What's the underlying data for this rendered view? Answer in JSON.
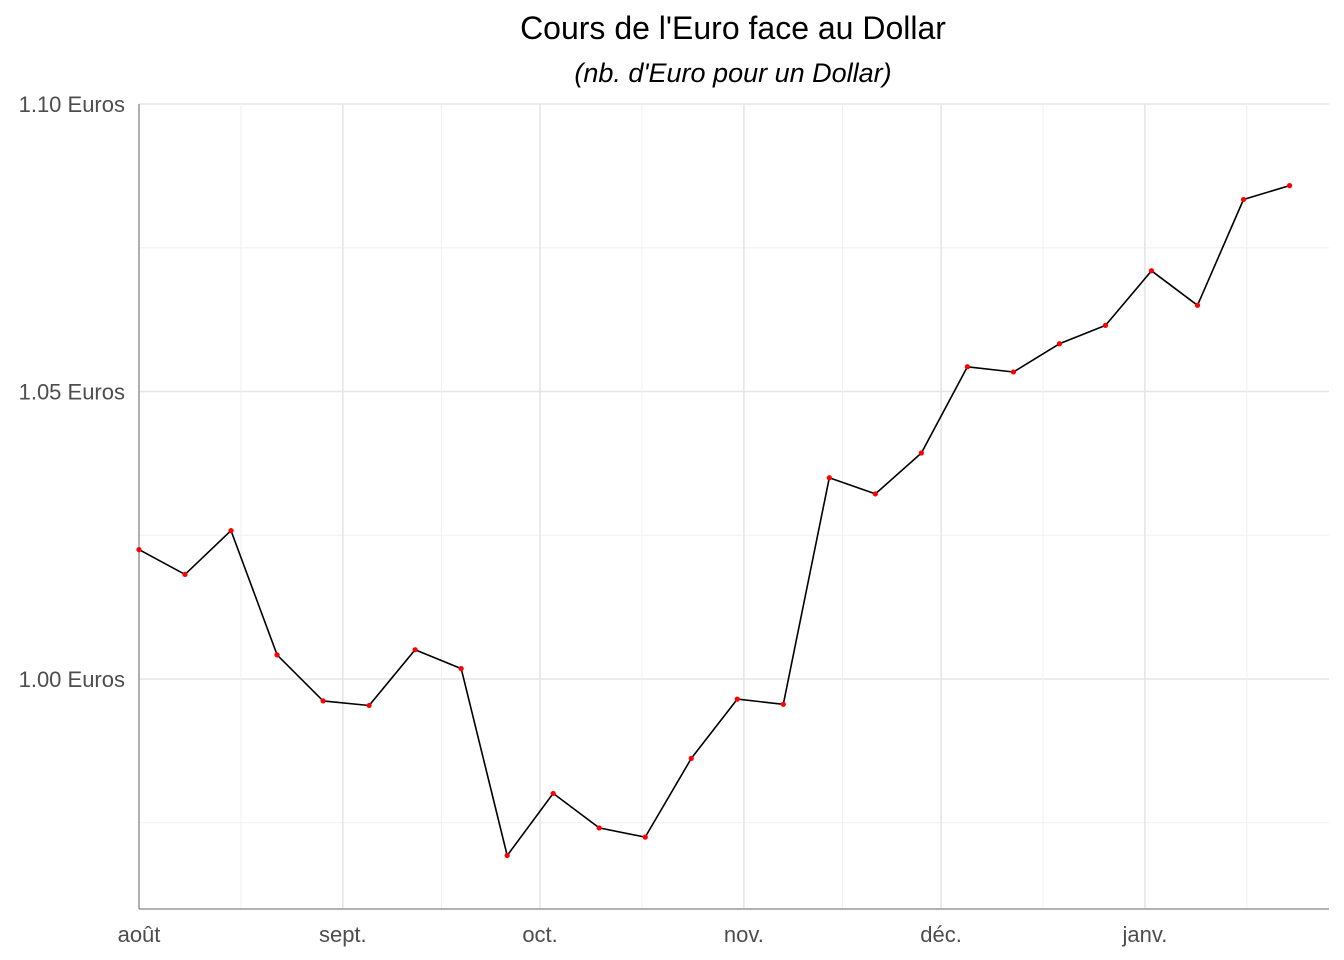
{
  "chart_data": {
    "type": "line",
    "title": "Cours de l'Euro face au Dollar",
    "subtitle": "(nb. d'Euro pour un Dollar)",
    "xlabel": "",
    "ylabel": "",
    "x_ticks": [
      {
        "label": "août",
        "date": "2022-08-01"
      },
      {
        "label": "sept.",
        "date": "2022-09-01"
      },
      {
        "label": "oct.",
        "date": "2022-10-01"
      },
      {
        "label": "nov.",
        "date": "2022-11-01"
      },
      {
        "label": "déc.",
        "date": "2022-12-01"
      },
      {
        "label": "janv.",
        "date": "2023-01-01"
      }
    ],
    "y_ticks": [
      {
        "label": "1.00 Euros",
        "value": 1.0
      },
      {
        "label": "1.05 Euros",
        "value": 1.05
      },
      {
        "label": "1.10 Euros",
        "value": 1.1
      }
    ],
    "xlim": [
      "2022-08-01",
      "2023-01-29"
    ],
    "ylim": [
      0.96,
      1.1
    ],
    "grid": true,
    "line_color": "#000000",
    "point_color": "#ff0000",
    "series": [
      {
        "x": [
          "2022-08-01",
          "2022-08-08",
          "2022-08-15",
          "2022-08-22",
          "2022-08-29",
          "2022-09-05",
          "2022-09-12",
          "2022-09-19",
          "2022-09-26",
          "2022-10-03",
          "2022-10-10",
          "2022-10-17",
          "2022-10-24",
          "2022-10-31",
          "2022-11-07",
          "2022-11-14",
          "2022-11-21",
          "2022-11-28",
          "2022-12-05",
          "2022-12-12",
          "2022-12-19",
          "2022-12-26",
          "2023-01-02",
          "2023-01-09",
          "2023-01-16",
          "2023-01-23"
        ],
        "values": [
          1.0225,
          1.0182,
          1.0258,
          1.0042,
          0.9962,
          0.9954,
          1.0051,
          1.0018,
          0.9693,
          0.9801,
          0.9741,
          0.9725,
          0.9862,
          0.9965,
          0.9956,
          1.035,
          1.0322,
          1.0393,
          1.0543,
          1.0534,
          1.0583,
          1.0615,
          1.071,
          1.065,
          1.0834,
          1.0858
        ]
      }
    ]
  }
}
